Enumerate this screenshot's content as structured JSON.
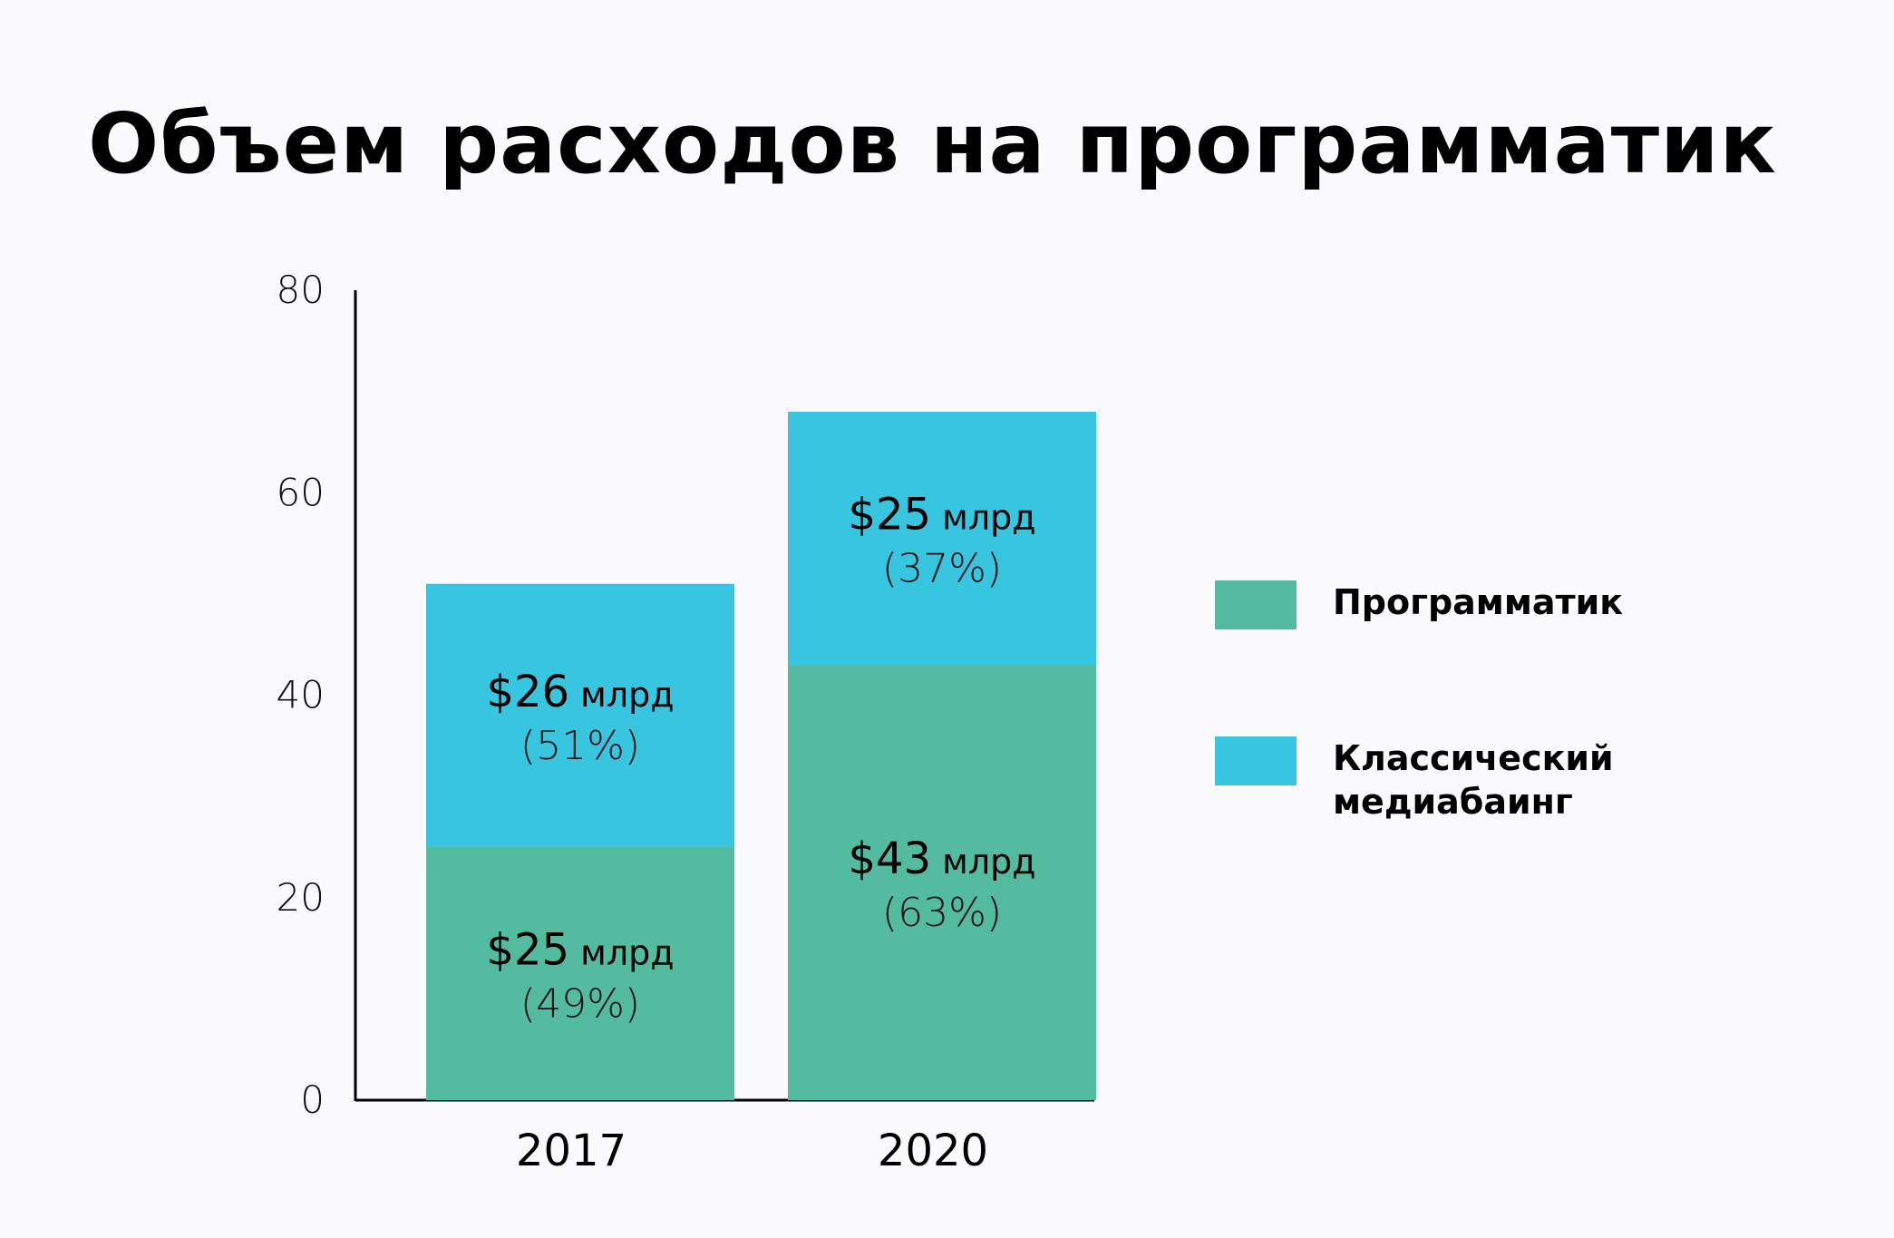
{
  "chart_data": {
    "type": "bar",
    "stacked": true,
    "title": "Объем расходов на программатик",
    "categories": [
      "2017",
      "2020"
    ],
    "series": [
      {
        "name": "Программатик",
        "color": "#52bba0",
        "values": [
          25,
          43
        ],
        "labels": [
          {
            "amount": "$25",
            "unit": " млрд",
            "pct": "(49%)"
          },
          {
            "amount": "$43",
            "unit": " млрд",
            "pct": "(63%)"
          }
        ]
      },
      {
        "name": "Классический медиабаинг",
        "color": "#38c5e0",
        "values": [
          26,
          25
        ],
        "labels": [
          {
            "amount": "$26",
            "unit": " млрд",
            "pct": "(51%)"
          },
          {
            "amount": "$25",
            "unit": " млрд",
            "pct": "(37%)"
          }
        ]
      }
    ],
    "yticks": [
      0,
      20,
      40,
      60,
      80
    ],
    "ylim": [
      0,
      80
    ],
    "grid": false,
    "legend_position": "right"
  },
  "legend": {
    "items": [
      {
        "label": "Программатик",
        "color": "#52bba0"
      },
      {
        "label": "Классический медиабаинг",
        "color": "#38c5e0"
      }
    ]
  }
}
